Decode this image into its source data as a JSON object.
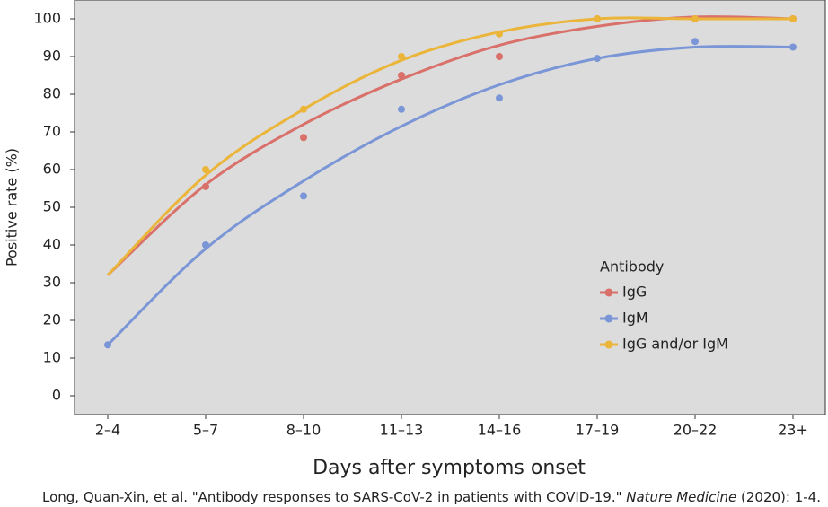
{
  "chart_data": {
    "type": "line",
    "y_label": "Positive rate (%)",
    "x_label": "Days after symptoms onset",
    "categories": [
      "2–4",
      "5–7",
      "8–10",
      "11–13",
      "14–16",
      "17–19",
      "20–22",
      "23+"
    ],
    "ylim": [
      -5,
      105
    ],
    "yticks": [
      0,
      10,
      20,
      30,
      40,
      50,
      60,
      70,
      80,
      90,
      100
    ],
    "legend_title": "Antibody",
    "series": [
      {
        "name": "IgG",
        "color": "#d9706a",
        "values": [
          null,
          55.5,
          68.5,
          85,
          90,
          100,
          100,
          100
        ],
        "fit": [
          32,
          56,
          72,
          84,
          93,
          98,
          100.5,
          100
        ]
      },
      {
        "name": "IgM",
        "color": "#7b96d6",
        "values": [
          13.5,
          40,
          53,
          76,
          79,
          89.5,
          94,
          92.5
        ],
        "fit": [
          13.5,
          39,
          57,
          71.5,
          82.5,
          89.5,
          92.5,
          92.5
        ]
      },
      {
        "name": "IgG and/or IgM",
        "color": "#ebb53a",
        "values": [
          null,
          60,
          76,
          90,
          96,
          100,
          100,
          100
        ],
        "fit": [
          32,
          58.5,
          76,
          89,
          96.5,
          100,
          100,
          100
        ]
      }
    ],
    "citation": {
      "before": "Long, Quan-Xin, et al. \"Antibody responses to SARS-CoV-2 in patients with COVID-19.\" ",
      "journal": "Nature Medicine",
      "after": " (2020): 1-4."
    }
  }
}
